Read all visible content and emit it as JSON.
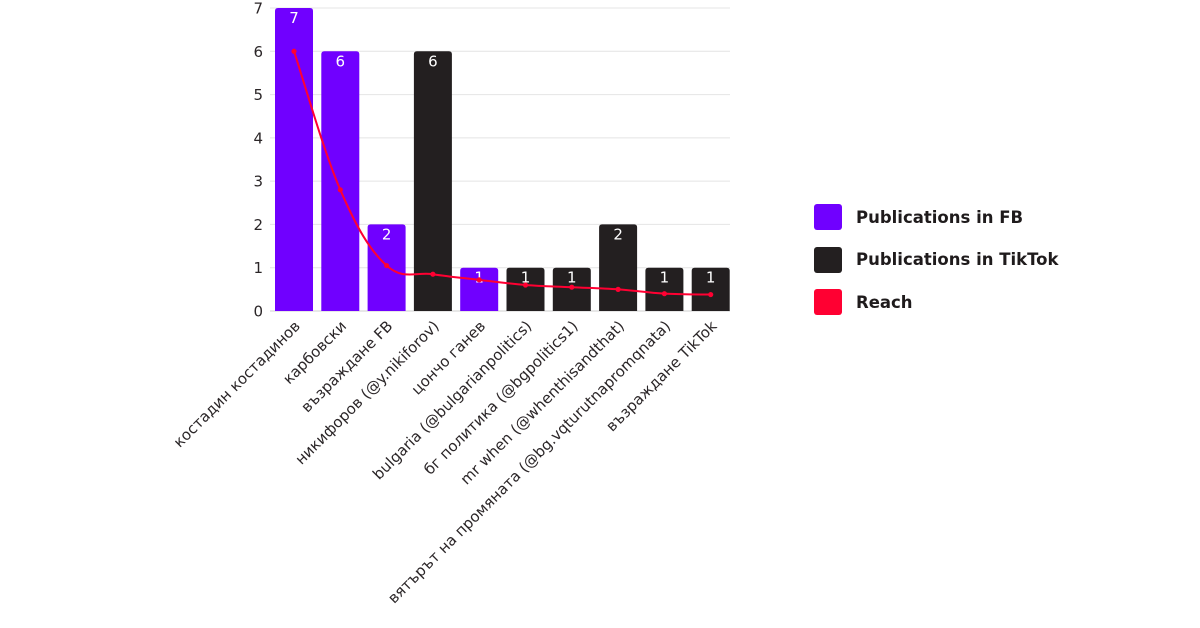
{
  "chart_data": {
    "type": "bar",
    "categories": [
      "костадин костадинов",
      "карбовски",
      "възраждане FB",
      "никифоров (@y.nikiforov)",
      "цончо ганев",
      "bulgaria (@bulgarianpolitics)",
      "бг политика (@bgpolitics1)",
      "mr when (@whenthisandthat)",
      "вятърът на промяната (@bg.vqturutnapromqnata)",
      "възраждане TikTok"
    ],
    "platform": [
      "FB",
      "FB",
      "FB",
      "TikTok",
      "FB",
      "TikTok",
      "TikTok",
      "TikTok",
      "TikTok",
      "TikTok"
    ],
    "values": [
      7,
      6,
      2,
      6,
      1,
      1,
      1,
      2,
      1,
      1
    ],
    "data_labels": [
      "7",
      "6",
      "2",
      "6",
      "1",
      "1",
      "1",
      "2",
      "1",
      "1"
    ],
    "reach": [
      6,
      2.8,
      1.05,
      0.85,
      0.72,
      0.6,
      0.55,
      0.5,
      0.4,
      0.38
    ],
    "yticks": [
      "0",
      "1",
      "2",
      "3",
      "4",
      "5",
      "6",
      "7"
    ],
    "ylim": [
      0,
      7
    ],
    "grid": true,
    "legend_position": "right",
    "legend": [
      {
        "label": "Publications in FB",
        "color": "#7000ff"
      },
      {
        "label": "Publications in TikTok",
        "color": "#231f20"
      },
      {
        "label": "Reach",
        "color": "#ff0032"
      }
    ],
    "colors": {
      "FB": "#7000ff",
      "TikTok": "#231f20",
      "reach": "#ff0032",
      "grid": "#e4e4e4"
    }
  }
}
